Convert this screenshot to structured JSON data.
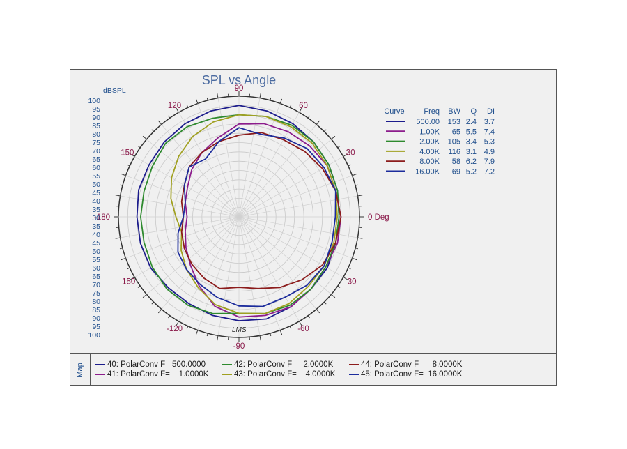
{
  "chart_data": {
    "type": "polar-line",
    "title": "SPL vs Angle",
    "radial_label": "dBSPL",
    "radial_ticks": [
      "100",
      "95",
      "90",
      "85",
      "80",
      "75",
      "70",
      "65",
      "60",
      "55",
      "50",
      "45",
      "40",
      "35",
      "30",
      "35",
      "40",
      "45",
      "50",
      "55",
      "60",
      "65",
      "70",
      "75",
      "80",
      "85",
      "90",
      "95",
      "100"
    ],
    "angle_labels": [
      {
        "deg": 0,
        "text": "0 Deg"
      },
      {
        "deg": 30,
        "text": "30"
      },
      {
        "deg": 60,
        "text": "60"
      },
      {
        "deg": 90,
        "text": "90"
      },
      {
        "deg": 120,
        "text": "120"
      },
      {
        "deg": 150,
        "text": "150"
      },
      {
        "deg": 180,
        "text": "-180"
      },
      {
        "deg": -150,
        "text": "-150"
      },
      {
        "deg": -120,
        "text": "-120"
      },
      {
        "deg": -90,
        "text": "-90"
      },
      {
        "deg": -60,
        "text": "-60"
      },
      {
        "deg": -30,
        "text": "-30"
      }
    ],
    "rlim": [
      30,
      95
    ],
    "table_headers": [
      "Curve",
      "Freq",
      "BW",
      "Q",
      "DI"
    ],
    "series": [
      {
        "name": "40",
        "freq": "500.00",
        "bw": "153",
        "q": "2.4",
        "di": "3.7",
        "color": "#1c1c8c",
        "angles": [
          0,
          15,
          30,
          45,
          60,
          75,
          90,
          105,
          120,
          135,
          150,
          165,
          180,
          195,
          210,
          225,
          240,
          255,
          270,
          285,
          300,
          315,
          330,
          345
        ],
        "r": [
          84,
          85,
          86,
          87,
          88,
          89,
          90,
          89,
          88,
          87,
          86,
          86,
          85,
          85,
          85,
          84,
          84,
          85,
          86,
          87,
          86,
          85,
          85,
          84
        ]
      },
      {
        "name": "41",
        "freq": "1.00K",
        "bw": "65",
        "q": "5.5",
        "di": "7.4",
        "color": "#8c1c8c",
        "angles": [
          0,
          15,
          30,
          45,
          60,
          75,
          90,
          105,
          120,
          135,
          150,
          165,
          180,
          195,
          210,
          225,
          240,
          255,
          270,
          285,
          300,
          315,
          330,
          345
        ],
        "r": [
          85,
          84,
          85,
          84,
          83,
          82,
          80,
          74,
          70,
          66,
          62,
          60,
          58,
          60,
          63,
          67,
          73,
          80,
          84,
          85,
          86,
          85,
          84,
          85
        ]
      },
      {
        "name": "42",
        "freq": "2.00K",
        "bw": "105",
        "q": "3.4",
        "di": "5.3",
        "color": "#2e8a2e",
        "angles": [
          0,
          15,
          30,
          45,
          60,
          75,
          90,
          105,
          120,
          135,
          150,
          165,
          180,
          195,
          210,
          225,
          240,
          255,
          270,
          285,
          300,
          315,
          330,
          345
        ],
        "r": [
          84,
          85,
          86,
          87,
          87,
          86,
          85,
          85,
          86,
          86,
          84,
          83,
          83,
          83,
          84,
          85,
          85,
          84,
          82,
          84,
          85,
          85,
          84,
          84
        ]
      },
      {
        "name": "43",
        "freq": "4.00K",
        "bw": "116",
        "q": "3.1",
        "di": "4.9",
        "color": "#a0a020",
        "angles": [
          0,
          15,
          30,
          45,
          60,
          75,
          90,
          105,
          120,
          135,
          150,
          165,
          180,
          195,
          210,
          225,
          240,
          255,
          270,
          285,
          300,
          315,
          330,
          345
        ],
        "r": [
          83,
          84,
          85,
          86,
          86,
          86,
          85,
          83,
          80,
          76,
          72,
          68,
          64,
          62,
          66,
          70,
          74,
          79,
          82,
          84,
          84,
          83,
          83,
          83
        ]
      },
      {
        "name": "44",
        "freq": "8.00K",
        "bw": "58",
        "q": "6.2",
        "di": "7.9",
        "color": "#8c1c1c",
        "angles": [
          0,
          15,
          30,
          45,
          60,
          75,
          90,
          105,
          120,
          135,
          150,
          165,
          180,
          195,
          210,
          225,
          240,
          255,
          270,
          285,
          300,
          315,
          330,
          345
        ],
        "r": [
          85,
          84,
          82,
          80,
          78,
          77,
          74,
          72,
          70,
          68,
          64,
          62,
          60,
          62,
          64,
          66,
          68,
          70,
          68,
          70,
          74,
          78,
          82,
          84
        ]
      },
      {
        "name": "45",
        "freq": "16.00K",
        "bw": "69",
        "q": "5.2",
        "di": "7.2",
        "color": "#1c2c9c",
        "angles": [
          0,
          15,
          30,
          45,
          60,
          75,
          90,
          105,
          120,
          135,
          150,
          165,
          180,
          195,
          210,
          225,
          240,
          255,
          270,
          285,
          300,
          315,
          330,
          345
        ],
        "r": [
          82,
          84,
          83,
          82,
          79,
          76,
          78,
          72,
          66,
          68,
          64,
          60,
          60,
          64,
          68,
          70,
          72,
          75,
          78,
          80,
          80,
          82,
          83,
          82
        ]
      }
    ]
  },
  "map": {
    "label": "Map",
    "entries": [
      {
        "text": "40: PolarConv F= 500.0000",
        "color": "#1c1c8c"
      },
      {
        "text": "41: PolarConv F=    1.0000K",
        "color": "#8c1c8c"
      },
      {
        "text": "42: PolarConv F=   2.0000K",
        "color": "#2e8a2e"
      },
      {
        "text": "43: PolarConv F=    4.0000K",
        "color": "#a0a020"
      },
      {
        "text": "44: PolarConv F=    8.0000K",
        "color": "#8c1c1c"
      },
      {
        "text": "45: PolarConv F=  16.0000K",
        "color": "#1c2c9c"
      }
    ]
  },
  "watermark": "LMS"
}
